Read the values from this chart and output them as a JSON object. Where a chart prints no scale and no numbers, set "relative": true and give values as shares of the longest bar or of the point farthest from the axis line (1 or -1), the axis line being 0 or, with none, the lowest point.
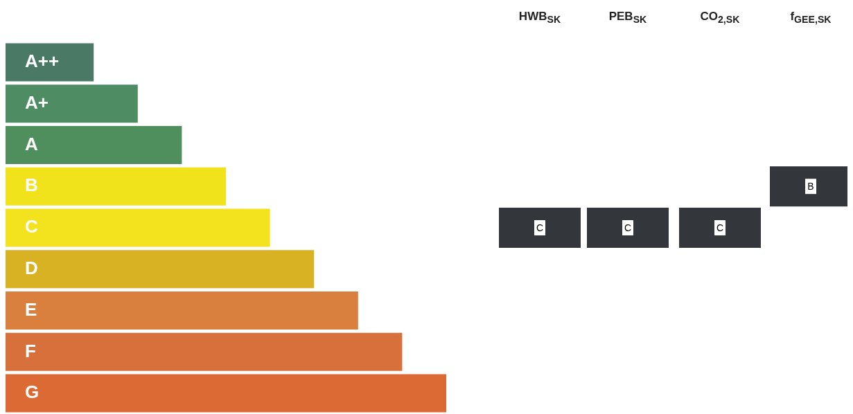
{
  "chart_data": {
    "type": "bar",
    "orientation": "horizontal",
    "relative": true,
    "categories": [
      "A++",
      "A+",
      "A",
      "B",
      "C",
      "D",
      "E",
      "F",
      "G"
    ],
    "values": [
      0.2,
      0.3,
      0.4,
      0.5,
      0.6,
      0.7,
      0.8,
      0.9,
      1.0
    ],
    "colors": [
      "#4a7a66",
      "#4e8d64",
      "#4f8f5e",
      "#f0e31c",
      "#f3e31e",
      "#d8b222",
      "#d9803f",
      "#d8703c",
      "#dc6a35"
    ],
    "annotations": [
      "HWB$_{SK}$",
      "PEB$_{SK}$",
      "CO$_{2,SK}$",
      "f$_{GEE,SK}$",
      "C",
      "C",
      "C",
      "B"
    ],
    "legend": false
  }
}
